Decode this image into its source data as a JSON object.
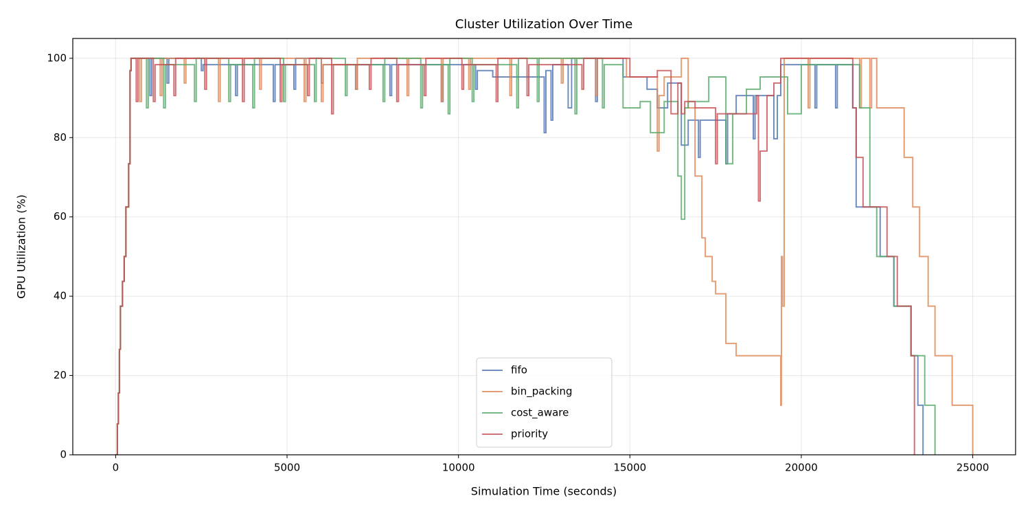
{
  "chart_data": {
    "type": "step",
    "title": "Cluster Utilization Over Time",
    "x_label": "Simulation Time (seconds)",
    "y_label": "GPU Utilization (%)",
    "xlim": [
      -1250,
      26250
    ],
    "xticks": [
      0,
      5000,
      10000,
      15000,
      20000,
      25000
    ],
    "ylim": [
      0,
      105
    ],
    "yticks": [
      0,
      20,
      40,
      60,
      80,
      100
    ],
    "grid": true,
    "legend_position": "lower center",
    "series": [
      {
        "name": "fifo",
        "color": "#4c72b0",
        "x": [
          0,
          50,
          80,
          110,
          140,
          200,
          250,
          300,
          380,
          420,
          450,
          1000,
          1050,
          1500,
          1550,
          2500,
          2550,
          3500,
          3550,
          4600,
          4650,
          5200,
          5250,
          6000,
          6050,
          7000,
          7050,
          8000,
          8050,
          9500,
          9550,
          10500,
          10550,
          11000,
          12500,
          12550,
          12700,
          12750,
          13200,
          13300,
          14000,
          14050,
          14800,
          15500,
          15800,
          16100,
          16500,
          16700,
          17000,
          17050,
          17800,
          17850,
          18100,
          18600,
          18650,
          19200,
          19300,
          19400,
          20400,
          20450,
          21000,
          21050,
          21500,
          21600,
          22300,
          22700,
          23200,
          23400,
          23550
        ],
        "values": [
          0,
          7.8,
          15.6,
          26.6,
          37.5,
          43.75,
          50,
          62.5,
          73.4,
          96.9,
          100,
          90.6,
          100,
          93.75,
          100,
          96.9,
          98.4,
          90.6,
          98.4,
          89.1,
          98.4,
          92.2,
          100,
          93.75,
          98.4,
          92.2,
          98.4,
          90.6,
          98.4,
          89.1,
          98.4,
          92.2,
          96.9,
          95.3,
          81.25,
          96.9,
          84.4,
          98.4,
          87.5,
          100,
          89.1,
          100,
          95.3,
          92.2,
          87.5,
          93.75,
          78.1,
          84.4,
          75,
          84.4,
          73.4,
          86,
          90.6,
          79.7,
          90.6,
          79.7,
          90.6,
          98.4,
          87.5,
          98.4,
          87.5,
          98.4,
          87.5,
          62.5,
          50,
          37.5,
          25,
          12.5,
          0
        ]
      },
      {
        "name": "bin_packing",
        "color": "#dd8452",
        "x": [
          0,
          50,
          80,
          110,
          140,
          200,
          250,
          300,
          380,
          420,
          450,
          700,
          750,
          1300,
          1350,
          2000,
          2050,
          3000,
          3050,
          4200,
          4250,
          5500,
          5550,
          6000,
          6050,
          7000,
          7050,
          8500,
          8550,
          9500,
          9550,
          10300,
          10350,
          11500,
          11550,
          13000,
          13050,
          14000,
          14050,
          14900,
          15800,
          15850,
          16000,
          16500,
          16700,
          16900,
          17100,
          17200,
          17400,
          17500,
          17800,
          18100,
          19400,
          19420,
          19450,
          19500,
          20200,
          20250,
          21700,
          21750,
          22000,
          22050,
          22200,
          23000,
          23250,
          23450,
          23700,
          23900,
          24400,
          25000
        ],
        "values": [
          0,
          7.8,
          15.6,
          26.6,
          37.5,
          43.75,
          50,
          62.5,
          73.4,
          96.9,
          100,
          89.1,
          100,
          90.6,
          100,
          93.75,
          100,
          89.1,
          100,
          92.2,
          100,
          89.1,
          100,
          89.1,
          98.4,
          92.2,
          100,
          90.6,
          100,
          89.1,
          100,
          92.2,
          100,
          90.6,
          100,
          93.75,
          100,
          90.6,
          100,
          95.3,
          76.6,
          90.6,
          95.3,
          100,
          87.5,
          70.3,
          54.7,
          50,
          43.75,
          40.6,
          28.1,
          25,
          12.5,
          50,
          37.5,
          100,
          87.5,
          100,
          87.5,
          100,
          87.5,
          100,
          87.5,
          75,
          62.5,
          50,
          37.5,
          25,
          12.5,
          0
        ]
      },
      {
        "name": "cost_aware",
        "color": "#55a868",
        "x": [
          0,
          50,
          80,
          110,
          140,
          200,
          250,
          300,
          380,
          420,
          450,
          900,
          950,
          1400,
          1450,
          2300,
          2350,
          3300,
          3350,
          4000,
          4050,
          4900,
          4950,
          5800,
          5850,
          6700,
          6750,
          7800,
          7850,
          8900,
          8950,
          9700,
          9750,
          10400,
          10450,
          11700,
          11750,
          12300,
          12350,
          13400,
          13450,
          14200,
          14250,
          14800,
          15300,
          15600,
          16000,
          16400,
          16500,
          16600,
          16700,
          17300,
          17800,
          18000,
          18400,
          18800,
          19600,
          20000,
          21700,
          22000,
          22200,
          22700,
          23200,
          23600,
          23900
        ],
        "values": [
          0,
          7.8,
          15.6,
          26.6,
          37.5,
          43.75,
          50,
          62.5,
          73.4,
          96.9,
          100,
          87.5,
          100,
          87.5,
          98.4,
          89.1,
          100,
          89.1,
          98.4,
          87.5,
          100,
          89.1,
          98.4,
          89.1,
          100,
          90.6,
          98.4,
          89.1,
          100,
          87.5,
          98.4,
          86,
          100,
          89.1,
          98.4,
          87.5,
          100,
          89.1,
          100,
          86,
          100,
          87.5,
          98.4,
          87.5,
          89.1,
          81.25,
          89.1,
          70.3,
          59.4,
          87.5,
          89.1,
          95.3,
          73.4,
          86,
          92.2,
          95.3,
          86,
          98.4,
          87.5,
          62.5,
          50,
          37.5,
          25,
          12.5,
          0
        ]
      },
      {
        "name": "priority",
        "color": "#c44e52",
        "x": [
          0,
          50,
          80,
          110,
          140,
          200,
          250,
          300,
          380,
          420,
          450,
          600,
          650,
          1100,
          1150,
          1700,
          1750,
          2600,
          2650,
          3700,
          3750,
          4800,
          4850,
          5600,
          5650,
          6300,
          6350,
          7400,
          7450,
          8200,
          8250,
          9000,
          9050,
          10100,
          10150,
          11100,
          11150,
          12000,
          12050,
          13600,
          13650,
          15000,
          15800,
          16200,
          16400,
          16500,
          16600,
          16900,
          17500,
          17550,
          18700,
          18750,
          18800,
          19000,
          19200,
          19400,
          21500,
          21600,
          21800,
          22500,
          22800,
          23200,
          23300
        ],
        "values": [
          0,
          7.8,
          15.6,
          26.6,
          37.5,
          43.75,
          50,
          62.5,
          73.4,
          96.9,
          100,
          89.1,
          100,
          89.1,
          98.4,
          90.6,
          100,
          92.2,
          100,
          89.1,
          100,
          89.1,
          98.4,
          90.6,
          100,
          86,
          98.4,
          92.2,
          100,
          89.1,
          98.4,
          90.6,
          100,
          92.2,
          98.4,
          89.1,
          100,
          90.6,
          98.4,
          92.2,
          100,
          95.3,
          96.9,
          86,
          93.75,
          86,
          89.1,
          87.5,
          73.4,
          86,
          90.6,
          64,
          76.6,
          90.6,
          93.75,
          100,
          87.5,
          75,
          62.5,
          50,
          37.5,
          25,
          0
        ]
      }
    ]
  }
}
